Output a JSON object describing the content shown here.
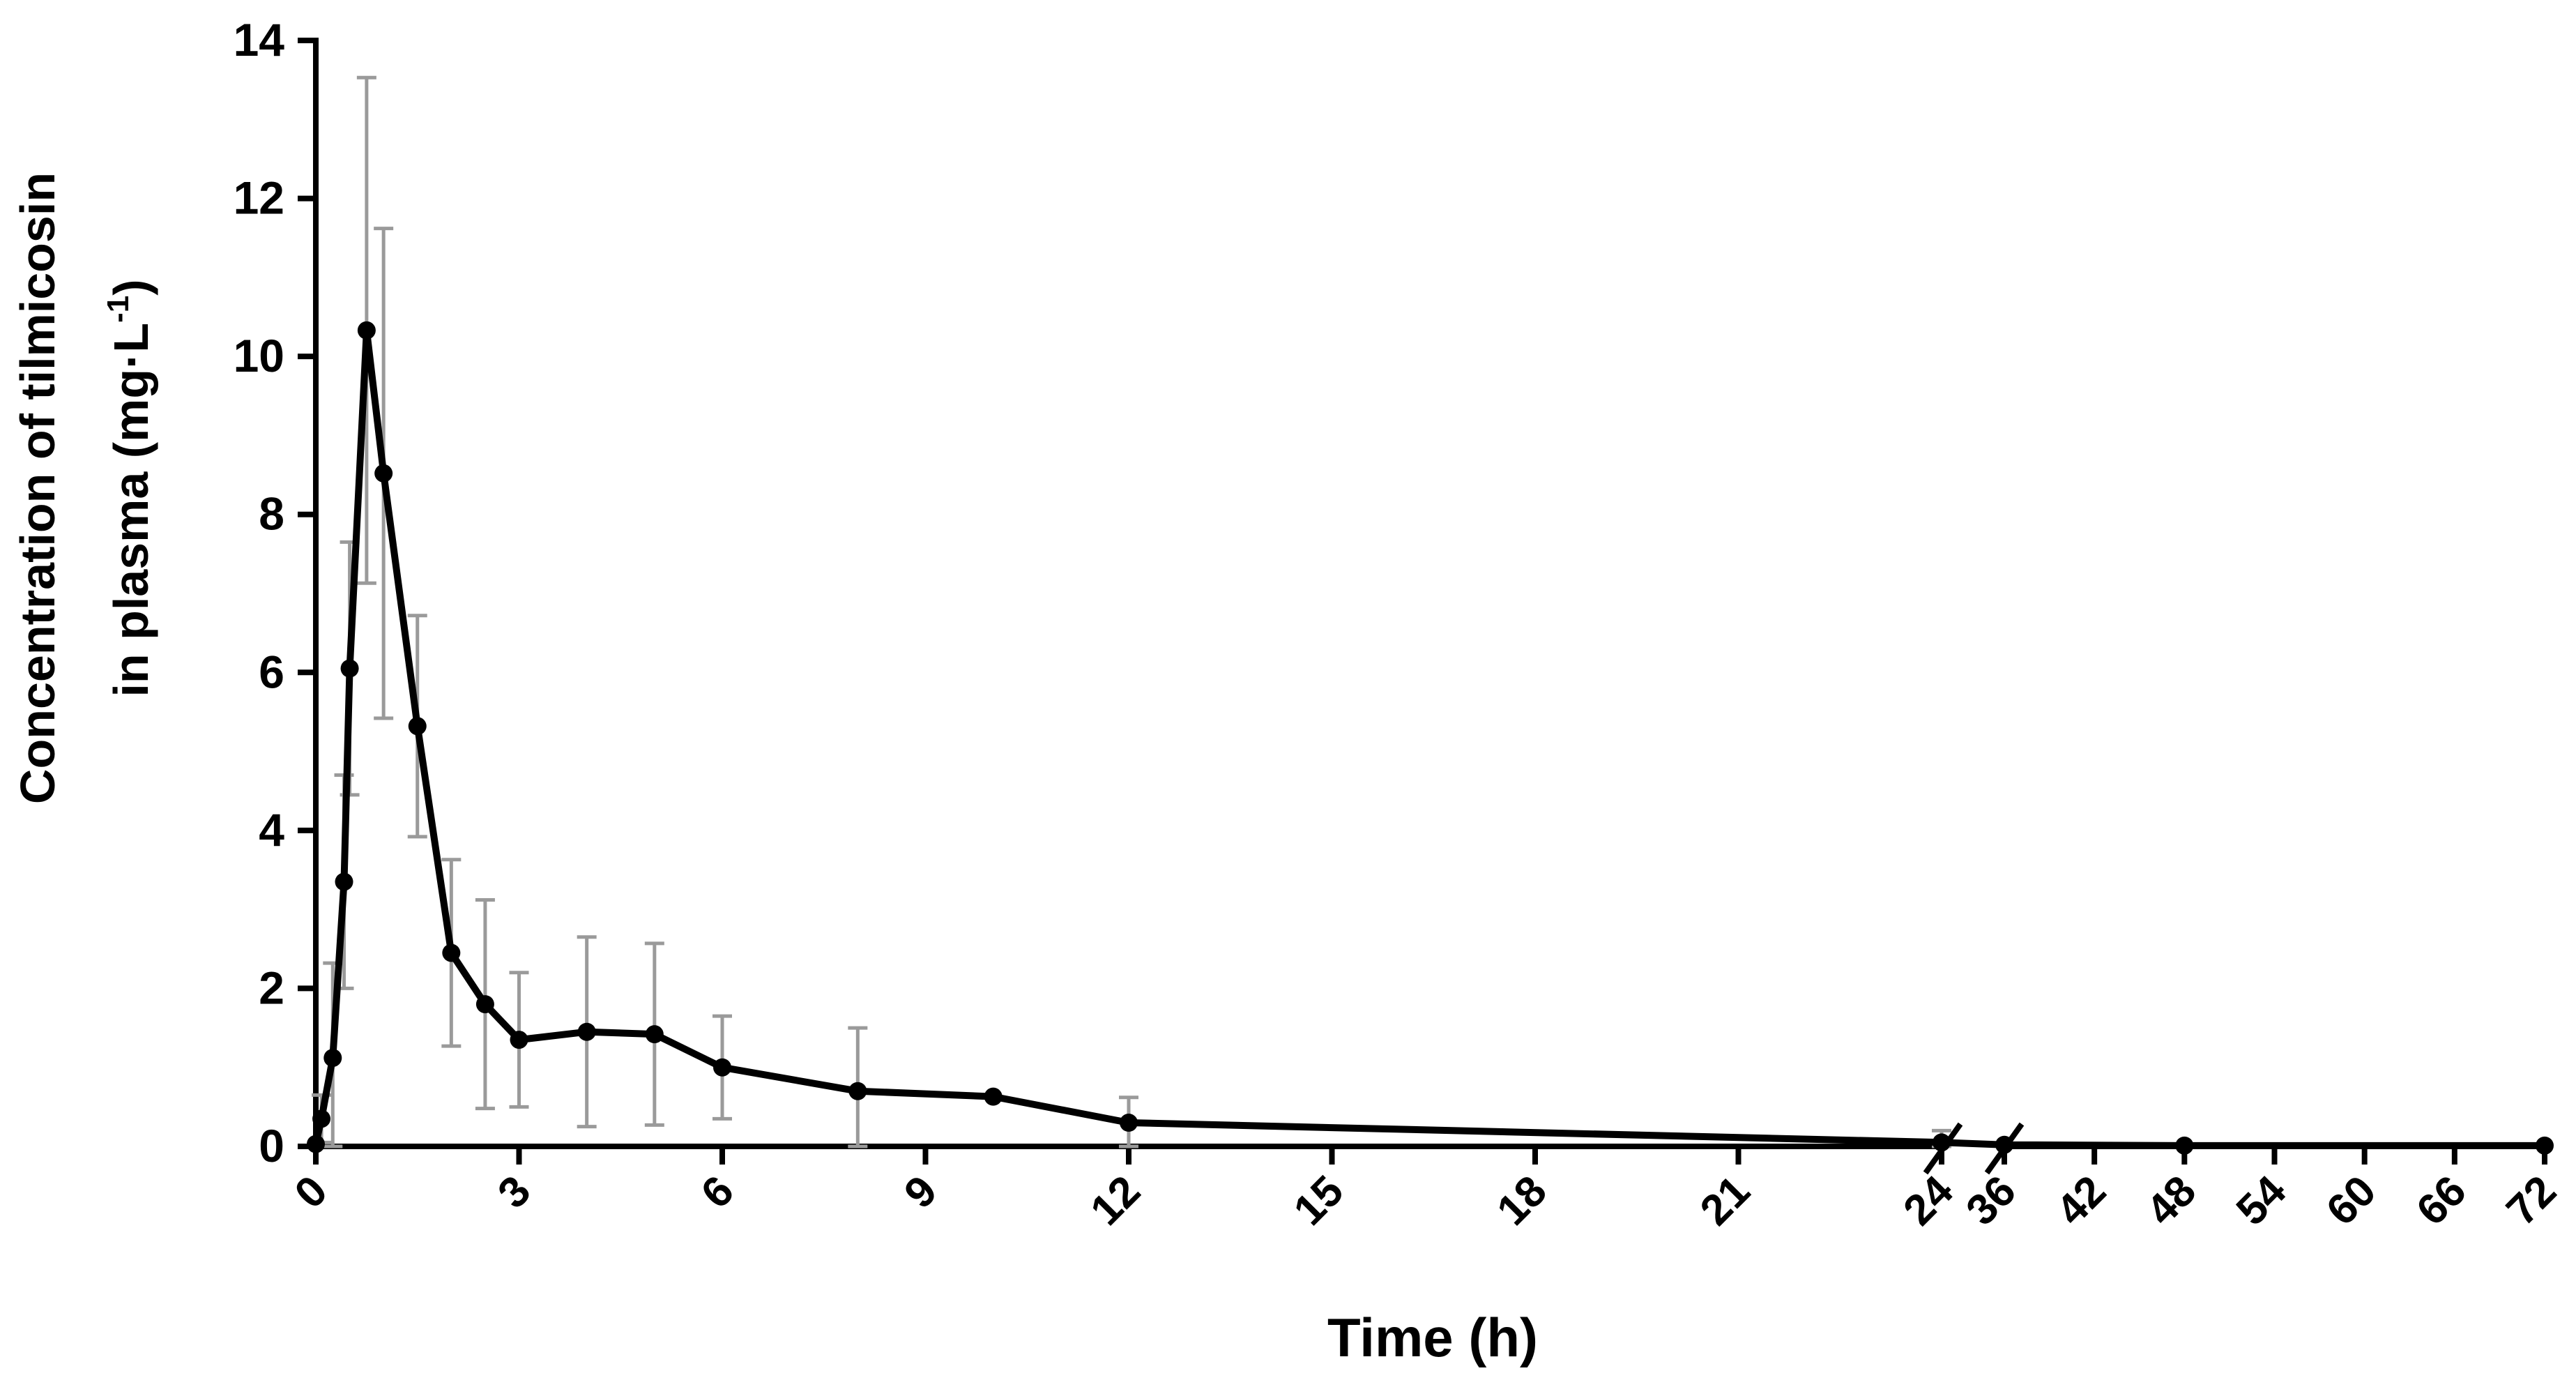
{
  "chart_data": {
    "type": "line",
    "xlabel": "Time (h)",
    "ylabel_line1": "Concentration of tilmicosin",
    "ylabel_line2_prefix": "in plasma (mg·L",
    "ylabel_line2_sup": "-1",
    "ylabel_line2_suffix": ")",
    "ylim": [
      0,
      14
    ],
    "y_ticks": [
      "0",
      "2",
      "4",
      "6",
      "8",
      "10",
      "12",
      "14"
    ],
    "x_axis_segments": [
      {
        "range": [
          0,
          24
        ],
        "ticks": [
          "0",
          "3",
          "6",
          "9",
          "12",
          "15",
          "18",
          "21",
          "24"
        ]
      },
      {
        "range": [
          36,
          72
        ],
        "ticks": [
          "36",
          "42",
          "48",
          "54",
          "60",
          "66",
          "72"
        ]
      }
    ],
    "x_axis_break": "between 24 and 36",
    "x": [
      0,
      0.083,
      0.25,
      0.417,
      0.5,
      0.75,
      1,
      1.5,
      2,
      2.5,
      3,
      4,
      5,
      6,
      8,
      10,
      12,
      24,
      36,
      48,
      72
    ],
    "y": [
      0.03,
      0.35,
      1.12,
      3.35,
      6.05,
      10.33,
      8.52,
      5.32,
      2.45,
      1.8,
      1.35,
      1.45,
      1.42,
      1.0,
      0.7,
      0.63,
      0.3,
      0.05,
      0.02,
      0.01,
      0.01
    ],
    "sd": [
      0,
      0.3,
      1.2,
      1.35,
      1.6,
      3.2,
      3.1,
      1.4,
      1.18,
      1.32,
      0.85,
      1.2,
      1.15,
      0.65,
      0.8,
      0,
      0.32,
      0.15,
      0,
      0,
      0
    ],
    "line_color": "#000000",
    "errorbar_color": "#9a9a9a",
    "grid": false
  }
}
